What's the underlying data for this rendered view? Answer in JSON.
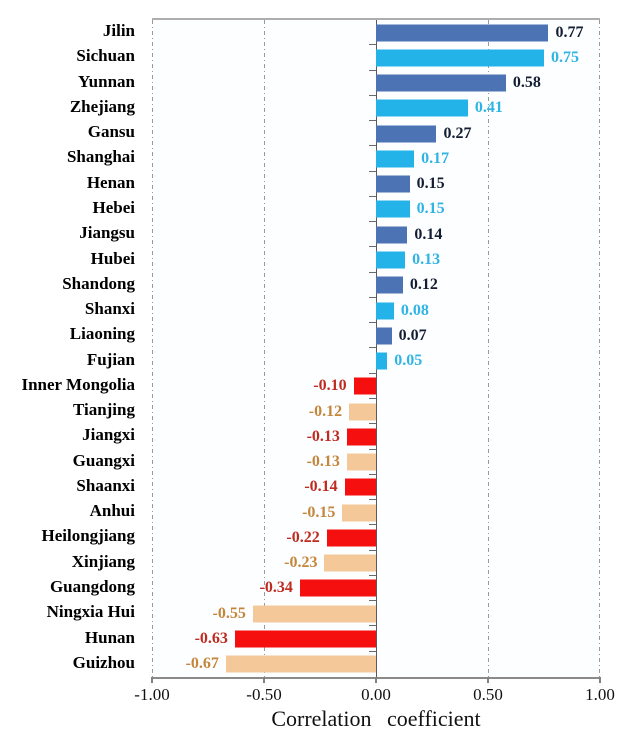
{
  "figure": {
    "xlabel": "Correlation coefficient",
    "axis_ticks": [
      {
        "label": "-1.00",
        "pos": 0
      },
      {
        "label": "-0.50",
        "pos": 25
      },
      {
        "label": "0.00",
        "pos": 50
      },
      {
        "label": "0.50",
        "pos": 75
      },
      {
        "label": "1.00",
        "pos": 100
      }
    ]
  },
  "colors": {
    "bar_dark_blue": "#4C73B4",
    "bar_cyan": "#24B3E8",
    "bar_red": "#F50F0F",
    "bar_peach": "#F4C898",
    "text_dark_navy": "#141E33",
    "text_cyan": "#2FB4E4",
    "text_dark_red": "#BF2B20",
    "text_orange": "#C4863B",
    "gridline": "#9A9A9A"
  },
  "chart_data": {
    "type": "bar",
    "orientation": "horizontal",
    "title": "",
    "xlabel": "Correlation coefficient",
    "ylabel": "",
    "xlim": [
      -1.0,
      1.0
    ],
    "grid": "dash-dot vertical gridlines at -1.00, -0.50, 0.50, 1.00; solid zero line",
    "legend": "none",
    "categories": [
      "Jilin",
      "Sichuan",
      "Yunnan",
      "Zhejiang",
      "Gansu",
      "Shanghai",
      "Henan",
      "Hebei",
      "Jiangsu",
      "Hubei",
      "Shandong",
      "Shanxi",
      "Liaoning",
      "Fujian",
      "Inner Mongolia",
      "Tianjing",
      "Jiangxi",
      "Guangxi",
      "Shaanxi",
      "Anhui",
      "Heilongjiang",
      "Xinjiang",
      "Guangdong",
      "Ningxia Hui",
      "Hunan",
      "Guizhou"
    ],
    "values": [
      0.77,
      0.75,
      0.58,
      0.41,
      0.27,
      0.17,
      0.15,
      0.15,
      0.14,
      0.13,
      0.12,
      0.08,
      0.07,
      0.05,
      -0.1,
      -0.12,
      -0.13,
      -0.13,
      -0.14,
      -0.15,
      -0.22,
      -0.23,
      -0.34,
      -0.55,
      -0.63,
      -0.67
    ],
    "items": [
      {
        "name": "Jilin",
        "value": 0.77,
        "value_label": "0.77",
        "bar_color": "#4C73B4",
        "text_color": "#141E33"
      },
      {
        "name": "Sichuan",
        "value": 0.75,
        "value_label": "0.75",
        "bar_color": "#24B3E8",
        "text_color": "#2FB4E4"
      },
      {
        "name": "Yunnan",
        "value": 0.58,
        "value_label": "0.58",
        "bar_color": "#4C73B4",
        "text_color": "#141E33"
      },
      {
        "name": "Zhejiang",
        "value": 0.41,
        "value_label": "0.41",
        "bar_color": "#24B3E8",
        "text_color": "#2FB4E4"
      },
      {
        "name": "Gansu",
        "value": 0.27,
        "value_label": "0.27",
        "bar_color": "#4C73B4",
        "text_color": "#141E33"
      },
      {
        "name": "Shanghai",
        "value": 0.17,
        "value_label": "0.17",
        "bar_color": "#24B3E8",
        "text_color": "#2FB4E4"
      },
      {
        "name": "Henan",
        "value": 0.15,
        "value_label": "0.15",
        "bar_color": "#4C73B4",
        "text_color": "#141E33"
      },
      {
        "name": "Hebei",
        "value": 0.15,
        "value_label": "0.15",
        "bar_color": "#24B3E8",
        "text_color": "#2FB4E4"
      },
      {
        "name": "Jiangsu",
        "value": 0.14,
        "value_label": "0.14",
        "bar_color": "#4C73B4",
        "text_color": "#141E33"
      },
      {
        "name": "Hubei",
        "value": 0.13,
        "value_label": "0.13",
        "bar_color": "#24B3E8",
        "text_color": "#2FB4E4"
      },
      {
        "name": "Shandong",
        "value": 0.12,
        "value_label": "0.12",
        "bar_color": "#4C73B4",
        "text_color": "#141E33"
      },
      {
        "name": "Shanxi",
        "value": 0.08,
        "value_label": "0.08",
        "bar_color": "#24B3E8",
        "text_color": "#2FB4E4"
      },
      {
        "name": "Liaoning",
        "value": 0.07,
        "value_label": "0.07",
        "bar_color": "#4C73B4",
        "text_color": "#141E33"
      },
      {
        "name": "Fujian",
        "value": 0.05,
        "value_label": "0.05",
        "bar_color": "#24B3E8",
        "text_color": "#2FB4E4"
      },
      {
        "name": "Inner Mongolia",
        "value": -0.1,
        "value_label": "-0.10",
        "bar_color": "#F50F0F",
        "text_color": "#BF2B20"
      },
      {
        "name": "Tianjing",
        "value": -0.12,
        "value_label": "-0.12",
        "bar_color": "#F4C898",
        "text_color": "#C4863B"
      },
      {
        "name": "Jiangxi",
        "value": -0.13,
        "value_label": "-0.13",
        "bar_color": "#F50F0F",
        "text_color": "#BF2B20"
      },
      {
        "name": "Guangxi",
        "value": -0.13,
        "value_label": "-0.13",
        "bar_color": "#F4C898",
        "text_color": "#C4863B"
      },
      {
        "name": "Shaanxi",
        "value": -0.14,
        "value_label": "-0.14",
        "bar_color": "#F50F0F",
        "text_color": "#BF2B20"
      },
      {
        "name": "Anhui",
        "value": -0.15,
        "value_label": "-0.15",
        "bar_color": "#F4C898",
        "text_color": "#C4863B"
      },
      {
        "name": "Heilongjiang",
        "value": -0.22,
        "value_label": "-0.22",
        "bar_color": "#F50F0F",
        "text_color": "#BF2B20"
      },
      {
        "name": "Xinjiang",
        "value": -0.23,
        "value_label": "-0.23",
        "bar_color": "#F4C898",
        "text_color": "#C4863B"
      },
      {
        "name": "Guangdong",
        "value": -0.34,
        "value_label": "-0.34",
        "bar_color": "#F50F0F",
        "text_color": "#BF2B20"
      },
      {
        "name": "Ningxia Hui",
        "value": -0.55,
        "value_label": "-0.55",
        "bar_color": "#F4C898",
        "text_color": "#C4863B"
      },
      {
        "name": "Hunan",
        "value": -0.63,
        "value_label": "-0.63",
        "bar_color": "#F50F0F",
        "text_color": "#BF2B20"
      },
      {
        "name": "Guizhou",
        "value": -0.67,
        "value_label": "-0.67",
        "bar_color": "#F4C898",
        "text_color": "#C4863B"
      }
    ]
  }
}
